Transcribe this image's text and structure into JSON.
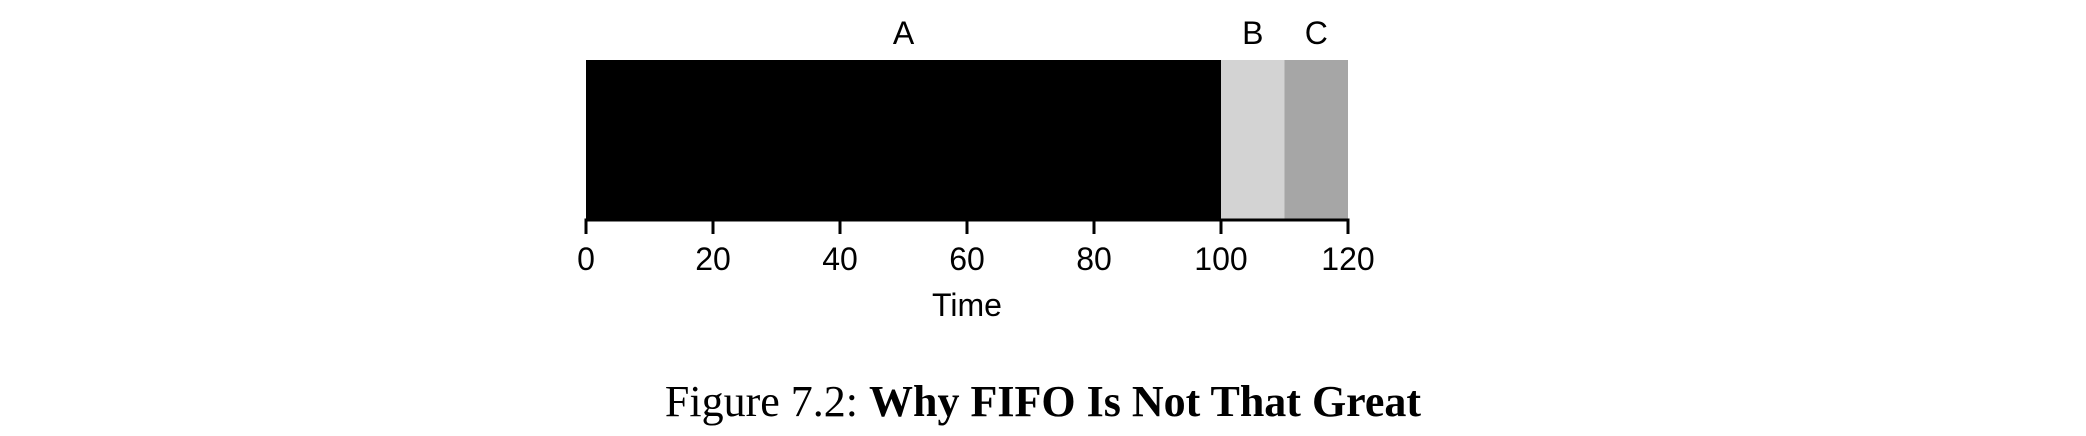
{
  "chart_data": {
    "type": "bar",
    "orientation": "horizontal-timeline",
    "segments": [
      {
        "label": "A",
        "start": 0,
        "end": 100,
        "color": "#000000"
      },
      {
        "label": "B",
        "start": 100,
        "end": 110,
        "color": "#d3d3d3"
      },
      {
        "label": "C",
        "start": 110,
        "end": 120,
        "color": "#a6a6a6"
      }
    ],
    "xlabel": "Time",
    "xlim": [
      0,
      120
    ],
    "xticks": [
      0,
      20,
      40,
      60,
      80,
      100,
      120
    ],
    "grid": false
  },
  "caption": {
    "prefix": "Figure 7.2:",
    "title": "Why FIFO Is Not That Great"
  }
}
